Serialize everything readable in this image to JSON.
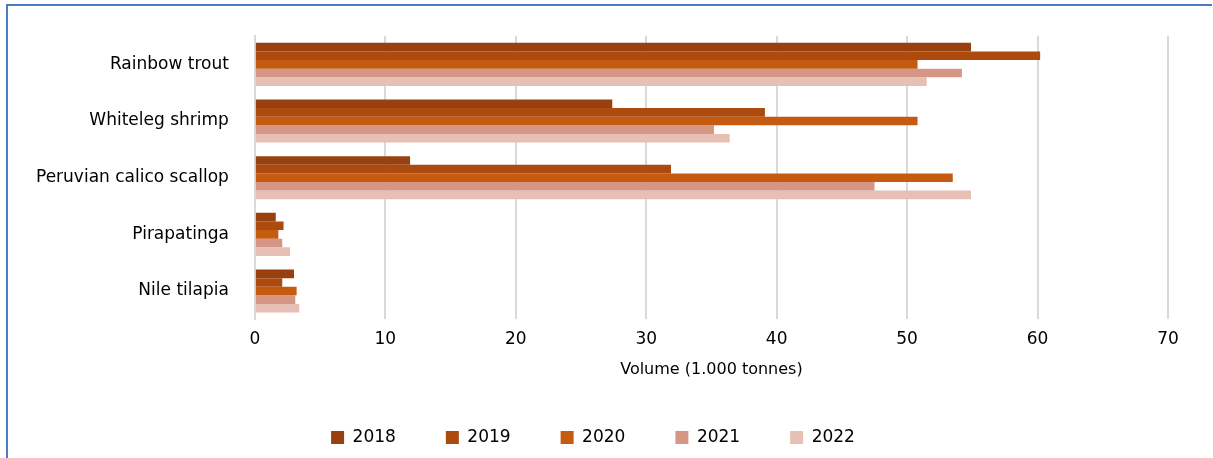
{
  "chart_data": {
    "type": "bar",
    "orientation": "horizontal",
    "xlabel": "Volume (1.000 tonnes)",
    "categories": [
      "Rainbow trout",
      "Whiteleg shrimp",
      "Peruvian calico scallop",
      "Pirapatinga",
      "Nile tilapia"
    ],
    "series": [
      {
        "name": "2018",
        "color": "#994010",
        "values": [
          54.9,
          27.4,
          11.9,
          1.6,
          3.0
        ]
      },
      {
        "name": "2019",
        "color": "#ad4b0e",
        "values": [
          60.2,
          39.1,
          31.9,
          2.2,
          2.1
        ]
      },
      {
        "name": "2020",
        "color": "#c55a11",
        "values": [
          50.8,
          50.8,
          53.5,
          1.8,
          3.2
        ]
      },
      {
        "name": "2021",
        "color": "#d59685",
        "values": [
          54.2,
          35.2,
          47.5,
          2.1,
          3.1
        ]
      },
      {
        "name": "2022",
        "color": "#e6bfb5",
        "values": [
          51.5,
          36.4,
          54.9,
          2.7,
          3.4
        ]
      }
    ],
    "xlim": [
      0,
      70
    ],
    "xticks": [
      0,
      10,
      20,
      30,
      40,
      50,
      60,
      70
    ],
    "grid": "x",
    "legend": "bottom"
  }
}
